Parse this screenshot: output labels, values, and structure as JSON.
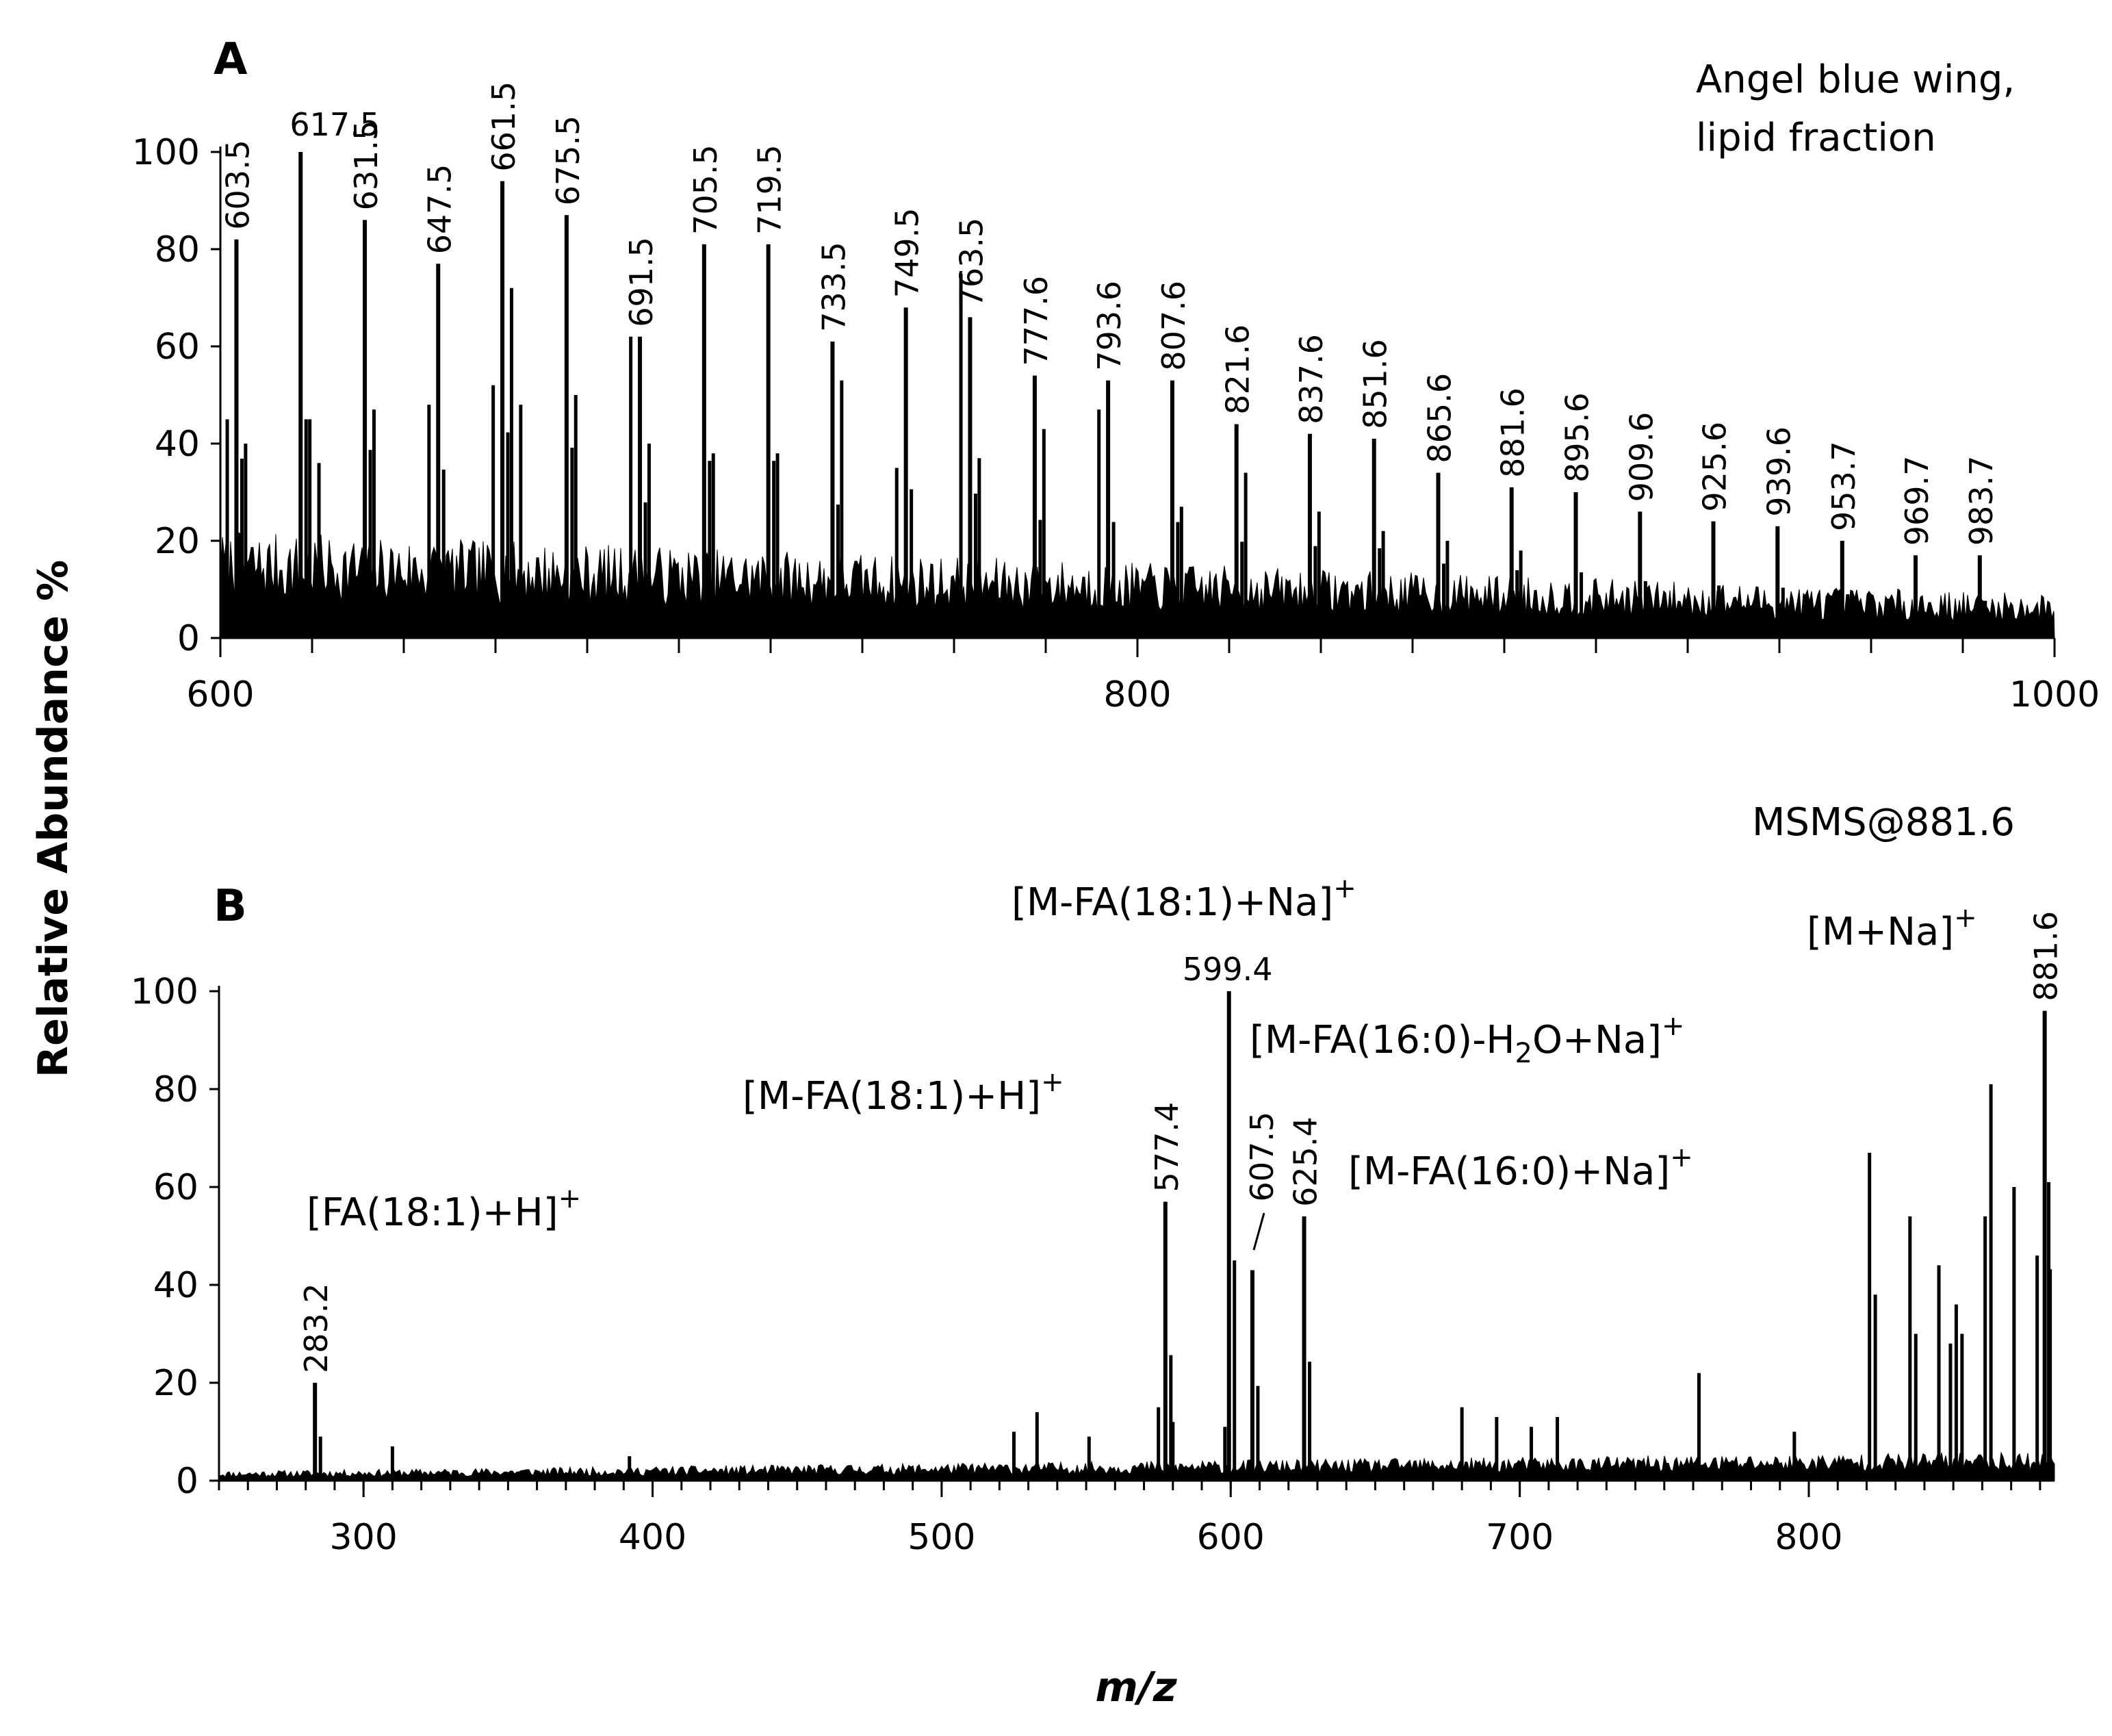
{
  "chart_data": [
    {
      "panel": "A",
      "type": "line",
      "title": "Angel blue wing, lipid fraction",
      "title_lines": [
        "Angel blue wing,",
        "lipid fraction"
      ],
      "xlabel": "m/z",
      "ylabel": "Relative Abundance %",
      "xlim": [
        600,
        1000
      ],
      "ylim": [
        0,
        100
      ],
      "xticks": [
        600,
        800,
        1000
      ],
      "yticks": [
        0,
        20,
        40,
        60,
        80,
        100
      ],
      "grid": false,
      "noise": {
        "start": 600,
        "end": 1000,
        "level_start": 22,
        "level_end": 9
      },
      "peaks": [
        {
          "mz": 603.5,
          "y": 82,
          "label": "603.5"
        },
        {
          "mz": 617.5,
          "y": 100,
          "label": "617.5"
        },
        {
          "mz": 631.5,
          "y": 86,
          "label": "631.5"
        },
        {
          "mz": 647.5,
          "y": 77,
          "label": "647.5"
        },
        {
          "mz": 661.5,
          "y": 94,
          "label": "661.5"
        },
        {
          "mz": 675.5,
          "y": 87,
          "label": "675.5"
        },
        {
          "mz": 691.5,
          "y": 62,
          "label": "691.5"
        },
        {
          "mz": 705.5,
          "y": 81,
          "label": "705.5"
        },
        {
          "mz": 719.5,
          "y": 81,
          "label": "719.5"
        },
        {
          "mz": 733.5,
          "y": 61,
          "label": "733.5"
        },
        {
          "mz": 749.5,
          "y": 68,
          "label": "749.5"
        },
        {
          "mz": 763.5,
          "y": 66,
          "label": "763.5"
        },
        {
          "mz": 777.6,
          "y": 54,
          "label": "777.6"
        },
        {
          "mz": 793.6,
          "y": 53,
          "label": "793.6"
        },
        {
          "mz": 807.6,
          "y": 53,
          "label": "807.6"
        },
        {
          "mz": 821.6,
          "y": 44,
          "label": "821.6"
        },
        {
          "mz": 837.6,
          "y": 42,
          "label": "837.6"
        },
        {
          "mz": 851.6,
          "y": 41,
          "label": "851.6"
        },
        {
          "mz": 865.6,
          "y": 34,
          "label": "865.6"
        },
        {
          "mz": 881.6,
          "y": 31,
          "label": "881.6"
        },
        {
          "mz": 895.6,
          "y": 30,
          "label": "895.6"
        },
        {
          "mz": 909.6,
          "y": 26,
          "label": "909.6"
        },
        {
          "mz": 925.6,
          "y": 24,
          "label": "925.6"
        },
        {
          "mz": 939.6,
          "y": 23,
          "label": "939.6"
        },
        {
          "mz": 953.7,
          "y": 20,
          "label": "953.7"
        },
        {
          "mz": 969.7,
          "y": 17,
          "label": "969.7"
        },
        {
          "mz": 983.7,
          "y": 17,
          "label": "983.7"
        }
      ],
      "minor_peaks": [
        {
          "mz": 601.5,
          "y": 45
        },
        {
          "mz": 605.5,
          "y": 40
        },
        {
          "mz": 619.5,
          "y": 45
        },
        {
          "mz": 621.5,
          "y": 36
        },
        {
          "mz": 633.5,
          "y": 47
        },
        {
          "mz": 645.5,
          "y": 48
        },
        {
          "mz": 659.5,
          "y": 52
        },
        {
          "mz": 663.5,
          "y": 72
        },
        {
          "mz": 665.5,
          "y": 48
        },
        {
          "mz": 677.5,
          "y": 50
        },
        {
          "mz": 689.5,
          "y": 62
        },
        {
          "mz": 693.5,
          "y": 40
        },
        {
          "mz": 707.5,
          "y": 38
        },
        {
          "mz": 721.5,
          "y": 38
        },
        {
          "mz": 735.5,
          "y": 53
        },
        {
          "mz": 747.5,
          "y": 35
        },
        {
          "mz": 761.5,
          "y": 75
        },
        {
          "mz": 765.5,
          "y": 37
        },
        {
          "mz": 779.6,
          "y": 43
        },
        {
          "mz": 791.6,
          "y": 47
        },
        {
          "mz": 809.6,
          "y": 27
        },
        {
          "mz": 823.6,
          "y": 34
        },
        {
          "mz": 839.6,
          "y": 26
        },
        {
          "mz": 853.6,
          "y": 22
        },
        {
          "mz": 867.6,
          "y": 20
        },
        {
          "mz": 883.6,
          "y": 18
        }
      ]
    },
    {
      "panel": "B",
      "type": "line",
      "title": "MSMS@881.6",
      "xlabel": "m/z",
      "ylabel": "Relative Abundance %",
      "xlim": [
        250,
        885
      ],
      "ylim": [
        0,
        100
      ],
      "xticks": [
        300,
        400,
        500,
        600,
        700,
        800
      ],
      "yticks": [
        0,
        20,
        40,
        60,
        80,
        100
      ],
      "grid": false,
      "noise": {
        "start": 250,
        "end": 885,
        "level_start": 2,
        "level_end": 6
      },
      "peaks": [
        {
          "mz": 283.2,
          "y": 20,
          "label": "283.2"
        },
        {
          "mz": 577.4,
          "y": 57,
          "label": "577.4"
        },
        {
          "mz": 599.4,
          "y": 100,
          "label": "599.4"
        },
        {
          "mz": 607.5,
          "y": 43,
          "label": "607.5"
        },
        {
          "mz": 625.4,
          "y": 54,
          "label": "625.4"
        },
        {
          "mz": 881.6,
          "y": 96,
          "label": "881.6"
        }
      ],
      "minor_peaks": [
        {
          "mz": 310,
          "y": 7
        },
        {
          "mz": 392,
          "y": 5
        },
        {
          "mz": 525,
          "y": 10
        },
        {
          "mz": 533,
          "y": 14
        },
        {
          "mz": 551,
          "y": 9
        },
        {
          "mz": 575,
          "y": 15
        },
        {
          "mz": 580,
          "y": 12
        },
        {
          "mz": 598,
          "y": 11
        },
        {
          "mz": 680,
          "y": 15
        },
        {
          "mz": 692,
          "y": 13
        },
        {
          "mz": 704,
          "y": 11
        },
        {
          "mz": 713,
          "y": 13
        },
        {
          "mz": 762,
          "y": 22
        },
        {
          "mz": 795,
          "y": 10
        },
        {
          "mz": 821,
          "y": 67
        },
        {
          "mz": 823,
          "y": 38
        },
        {
          "mz": 835,
          "y": 54
        },
        {
          "mz": 837,
          "y": 30
        },
        {
          "mz": 845,
          "y": 44
        },
        {
          "mz": 849,
          "y": 28
        },
        {
          "mz": 851,
          "y": 36
        },
        {
          "mz": 853,
          "y": 30
        },
        {
          "mz": 861,
          "y": 54
        },
        {
          "mz": 863,
          "y": 81
        },
        {
          "mz": 871,
          "y": 60
        },
        {
          "mz": 879,
          "y": 46
        },
        {
          "mz": 883,
          "y": 61
        }
      ],
      "annotations": [
        {
          "text": "[FA(18:1)+H]",
          "sup": "+"
        },
        {
          "text": "[M-FA(18:1)+H]",
          "sup": "+"
        },
        {
          "text": "[M-FA(18:1)+Na]",
          "sup": "+"
        },
        {
          "text_parts": [
            "[M-FA(16:0)-H",
            "2",
            "O+Na]"
          ],
          "sup": "+"
        },
        {
          "text": "[M-FA(16:0)+Na]",
          "sup": "+"
        },
        {
          "text": "[M+Na]",
          "sup": "+"
        }
      ]
    }
  ],
  "labels": {
    "panel_a": "A",
    "panel_b": "B",
    "y_axis_title": "Relative Abundance %",
    "x_axis_title": "m/z"
  },
  "colors": {
    "ink": "#000000",
    "background": "#ffffff"
  }
}
